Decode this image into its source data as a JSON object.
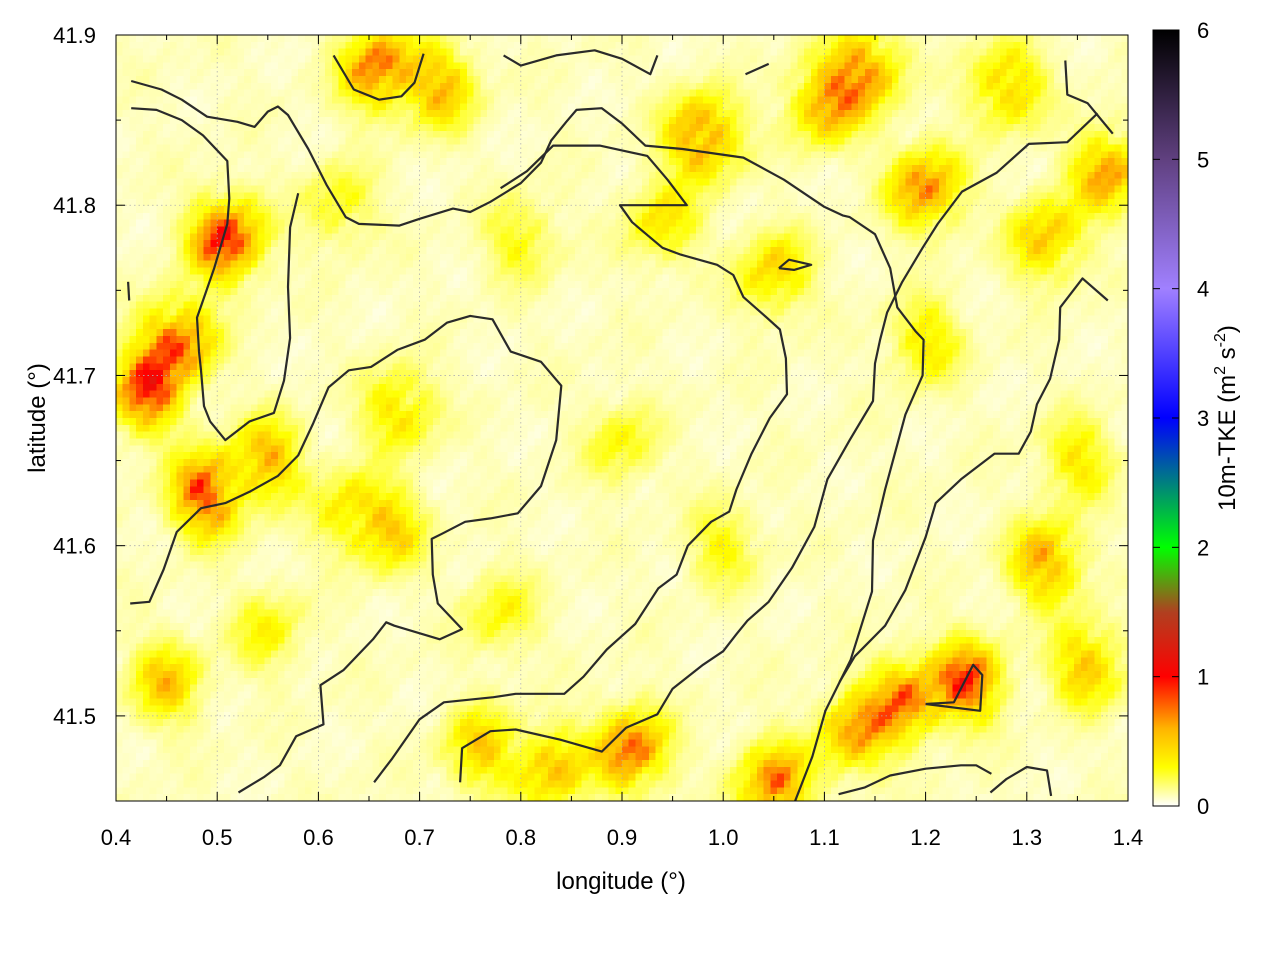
{
  "chart_data": {
    "type": "heatmap",
    "title": "",
    "xlabel": "longitude (°)",
    "ylabel": "latitude (°)",
    "xlim": [
      0.4,
      1.4
    ],
    "ylim": [
      41.45,
      41.9
    ],
    "x_ticks": [
      "0.4",
      "0.5",
      "0.6",
      "0.7",
      "0.8",
      "0.9",
      "1.0",
      "1.1",
      "1.2",
      "1.3",
      "1.4"
    ],
    "y_ticks": [
      "41.5",
      "41.6",
      "41.7",
      "41.8",
      "41.9"
    ],
    "grid": true,
    "colorbar": {
      "label_main": "10m-TKE (m",
      "label_sup1": "2",
      "label_mid": " s",
      "label_sup2": "-2",
      "label_end": ")",
      "range": [
        0,
        6
      ],
      "ticks": [
        "0",
        "1",
        "2",
        "3",
        "4",
        "5",
        "6"
      ],
      "colors": [
        {
          "v": 0.0,
          "c": "#ffffff"
        },
        {
          "v": 0.3,
          "c": "#ffff00"
        },
        {
          "v": 0.6,
          "c": "#ffb400"
        },
        {
          "v": 1.0,
          "c": "#ff0000"
        },
        {
          "v": 1.5,
          "c": "#b04020"
        },
        {
          "v": 2.0,
          "c": "#00ff00"
        },
        {
          "v": 3.0,
          "c": "#0000ff"
        },
        {
          "v": 4.0,
          "c": "#a080ff"
        },
        {
          "v": 5.0,
          "c": "#604080"
        },
        {
          "v": 6.0,
          "c": "#000000"
        }
      ]
    },
    "field_hotspots": [
      {
        "lon": 0.51,
        "lat": 41.78,
        "value": 1.1
      },
      {
        "lon": 0.46,
        "lat": 41.72,
        "value": 1.0
      },
      {
        "lon": 0.43,
        "lat": 41.69,
        "value": 0.9
      },
      {
        "lon": 0.49,
        "lat": 41.63,
        "value": 1.0
      },
      {
        "lon": 0.55,
        "lat": 41.65,
        "value": 0.6
      },
      {
        "lon": 0.66,
        "lat": 41.88,
        "value": 0.9
      },
      {
        "lon": 0.72,
        "lat": 41.87,
        "value": 0.6
      },
      {
        "lon": 0.98,
        "lat": 41.84,
        "value": 0.9
      },
      {
        "lon": 1.1,
        "lat": 41.86,
        "value": 0.7
      },
      {
        "lon": 1.14,
        "lat": 41.88,
        "value": 0.8
      },
      {
        "lon": 1.2,
        "lat": 41.81,
        "value": 0.8
      },
      {
        "lon": 1.28,
        "lat": 41.87,
        "value": 0.6
      },
      {
        "lon": 1.38,
        "lat": 41.82,
        "value": 0.7
      },
      {
        "lon": 1.32,
        "lat": 41.78,
        "value": 0.6
      },
      {
        "lon": 1.05,
        "lat": 41.76,
        "value": 0.5
      },
      {
        "lon": 0.94,
        "lat": 41.79,
        "value": 0.4
      },
      {
        "lon": 1.24,
        "lat": 41.52,
        "value": 0.9
      },
      {
        "lon": 1.18,
        "lat": 41.51,
        "value": 0.8
      },
      {
        "lon": 1.13,
        "lat": 41.49,
        "value": 0.7
      },
      {
        "lon": 1.32,
        "lat": 41.59,
        "value": 0.7
      },
      {
        "lon": 1.36,
        "lat": 41.53,
        "value": 0.6
      },
      {
        "lon": 0.91,
        "lat": 41.48,
        "value": 0.9
      },
      {
        "lon": 1.05,
        "lat": 41.46,
        "value": 0.8
      },
      {
        "lon": 0.83,
        "lat": 41.47,
        "value": 0.6
      },
      {
        "lon": 0.76,
        "lat": 41.48,
        "value": 0.5
      },
      {
        "lon": 0.45,
        "lat": 41.52,
        "value": 0.5
      },
      {
        "lon": 0.68,
        "lat": 41.68,
        "value": 0.5
      },
      {
        "lon": 0.63,
        "lat": 41.62,
        "value": 0.4
      },
      {
        "lon": 0.67,
        "lat": 41.61,
        "value": 0.5
      },
      {
        "lon": 1.2,
        "lat": 41.72,
        "value": 0.4
      },
      {
        "lon": 1.35,
        "lat": 41.65,
        "value": 0.4
      },
      {
        "lon": 0.62,
        "lat": 41.8,
        "value": 0.3
      },
      {
        "lon": 0.8,
        "lat": 41.78,
        "value": 0.3
      },
      {
        "lon": 0.9,
        "lat": 41.66,
        "value": 0.3
      },
      {
        "lon": 0.55,
        "lat": 41.55,
        "value": 0.3
      },
      {
        "lon": 1.0,
        "lat": 41.6,
        "value": 0.3
      },
      {
        "lon": 0.78,
        "lat": 41.56,
        "value": 0.3
      }
    ],
    "contours": [
      [
        [
          0.415,
          41.873
        ],
        [
          0.445,
          41.868
        ],
        [
          0.465,
          41.862
        ],
        [
          0.49,
          41.852
        ],
        [
          0.52,
          41.849
        ],
        [
          0.537,
          41.846
        ],
        [
          0.55,
          41.855
        ],
        [
          0.56,
          41.858
        ],
        [
          0.57,
          41.853
        ],
        [
          0.59,
          41.833
        ],
        [
          0.608,
          41.812
        ],
        [
          0.627,
          41.793
        ],
        [
          0.64,
          41.789
        ],
        [
          0.68,
          41.788
        ],
        [
          0.7,
          41.792
        ],
        [
          0.733,
          41.798
        ],
        [
          0.75,
          41.796
        ],
        [
          0.77,
          41.802
        ],
        [
          0.8,
          41.813
        ],
        [
          0.82,
          41.825
        ],
        [
          0.83,
          41.838
        ],
        [
          0.845,
          41.849
        ],
        [
          0.855,
          41.856
        ],
        [
          0.88,
          41.857
        ],
        [
          0.9,
          41.848
        ],
        [
          0.923,
          41.835
        ],
        [
          0.96,
          41.833
        ],
        [
          1.02,
          41.828
        ],
        [
          1.06,
          41.815
        ],
        [
          1.1,
          41.799
        ],
        [
          1.118,
          41.794
        ],
        [
          1.125,
          41.793
        ],
        [
          1.15,
          41.783
        ],
        [
          1.165,
          41.763
        ],
        [
          1.172,
          41.74
        ],
        [
          1.19,
          41.726
        ],
        [
          1.198,
          41.721
        ],
        [
          1.197,
          41.7
        ],
        [
          1.18,
          41.677
        ],
        [
          1.16,
          41.633
        ],
        [
          1.148,
          41.603
        ],
        [
          1.147,
          41.573
        ],
        [
          1.126,
          41.533
        ],
        [
          1.101,
          41.503
        ],
        [
          1.088,
          41.476
        ],
        [
          1.06,
          41.433
        ],
        [
          1.041,
          41.415
        ],
        [
          1.02,
          41.39
        ]
      ],
      [
        [
          0.415,
          41.857
        ],
        [
          0.44,
          41.856
        ],
        [
          0.465,
          41.85
        ],
        [
          0.486,
          41.841
        ],
        [
          0.51,
          41.826
        ],
        [
          0.512,
          41.804
        ],
        [
          0.51,
          41.789
        ],
        [
          0.497,
          41.763
        ],
        [
          0.486,
          41.744
        ],
        [
          0.48,
          41.734
        ],
        [
          0.482,
          41.714
        ],
        [
          0.484,
          41.703
        ],
        [
          0.487,
          41.682
        ],
        [
          0.493,
          41.673
        ],
        [
          0.508,
          41.662
        ],
        [
          0.532,
          41.673
        ],
        [
          0.556,
          41.678
        ],
        [
          0.566,
          41.697
        ],
        [
          0.572,
          41.722
        ],
        [
          0.57,
          41.752
        ],
        [
          0.572,
          41.787
        ],
        [
          0.58,
          41.807
        ]
      ],
      [
        [
          0.414,
          41.566
        ],
        [
          0.433,
          41.567
        ],
        [
          0.447,
          41.586
        ],
        [
          0.46,
          41.608
        ],
        [
          0.484,
          41.622
        ],
        [
          0.508,
          41.625
        ],
        [
          0.533,
          41.632
        ],
        [
          0.56,
          41.641
        ],
        [
          0.58,
          41.653
        ],
        [
          0.595,
          41.672
        ],
        [
          0.61,
          41.693
        ],
        [
          0.63,
          41.703
        ],
        [
          0.652,
          41.705
        ],
        [
          0.678,
          41.715
        ],
        [
          0.705,
          41.721
        ],
        [
          0.727,
          41.731
        ],
        [
          0.75,
          41.735
        ],
        [
          0.772,
          41.733
        ],
        [
          0.79,
          41.714
        ],
        [
          0.82,
          41.708
        ],
        [
          0.84,
          41.694
        ],
        [
          0.835,
          41.662
        ],
        [
          0.82,
          41.635
        ],
        [
          0.797,
          41.619
        ],
        [
          0.77,
          41.616
        ],
        [
          0.745,
          41.614
        ],
        [
          0.722,
          41.607
        ],
        [
          0.712,
          41.604
        ],
        [
          0.713,
          41.583
        ],
        [
          0.718,
          41.566
        ],
        [
          0.742,
          41.551
        ],
        [
          0.72,
          41.545
        ],
        [
          0.675,
          41.553
        ],
        [
          0.667,
          41.555
        ],
        [
          0.654,
          41.545
        ],
        [
          0.625,
          41.527
        ],
        [
          0.602,
          41.518
        ],
        [
          0.605,
          41.495
        ],
        [
          0.578,
          41.488
        ],
        [
          0.562,
          41.471
        ],
        [
          0.546,
          41.464
        ],
        [
          0.521,
          41.455
        ]
      ],
      [
        [
          0.655,
          41.461
        ],
        [
          0.673,
          41.475
        ],
        [
          0.7,
          41.498
        ],
        [
          0.724,
          41.508
        ],
        [
          0.773,
          41.511
        ],
        [
          0.795,
          41.513
        ],
        [
          0.843,
          41.513
        ],
        [
          0.862,
          41.523
        ],
        [
          0.885,
          41.539
        ],
        [
          0.913,
          41.554
        ],
        [
          0.936,
          41.575
        ],
        [
          0.954,
          41.583
        ],
        [
          0.965,
          41.6
        ],
        [
          0.988,
          41.614
        ],
        [
          1.006,
          41.62
        ],
        [
          1.013,
          41.633
        ],
        [
          1.028,
          41.654
        ],
        [
          1.046,
          41.675
        ],
        [
          1.063,
          41.689
        ],
        [
          1.062,
          41.71
        ],
        [
          1.056,
          41.727
        ],
        [
          1.043,
          41.734
        ],
        [
          1.02,
          41.746
        ],
        [
          1.01,
          41.759
        ],
        [
          0.994,
          41.765
        ],
        [
          0.958,
          41.771
        ],
        [
          0.94,
          41.775
        ],
        [
          0.91,
          41.79
        ],
        [
          0.898,
          41.8
        ],
        [
          0.92,
          41.8
        ],
        [
          0.964,
          41.8
        ],
        [
          0.945,
          41.815
        ],
        [
          0.925,
          41.829
        ],
        [
          0.878,
          41.835
        ],
        [
          0.832,
          41.835
        ],
        [
          0.806,
          41.82
        ],
        [
          0.78,
          41.81
        ]
      ],
      [
        [
          0.74,
          41.461
        ],
        [
          0.742,
          41.481
        ],
        [
          0.77,
          41.491
        ],
        [
          0.795,
          41.492
        ],
        [
          0.839,
          41.486
        ],
        [
          0.88,
          41.479
        ],
        [
          0.904,
          41.493
        ],
        [
          0.935,
          41.501
        ],
        [
          0.95,
          41.516
        ],
        [
          0.98,
          41.53
        ],
        [
          1.0,
          41.538
        ],
        [
          1.013,
          41.548
        ],
        [
          1.024,
          41.556
        ],
        [
          1.045,
          41.567
        ],
        [
          1.068,
          41.587
        ],
        [
          1.09,
          41.611
        ],
        [
          1.103,
          41.639
        ],
        [
          1.125,
          41.662
        ],
        [
          1.148,
          41.685
        ],
        [
          1.15,
          41.707
        ],
        [
          1.155,
          41.721
        ],
        [
          1.162,
          41.737
        ],
        [
          1.177,
          41.755
        ],
        [
          1.197,
          41.775
        ],
        [
          1.212,
          41.789
        ],
        [
          1.236,
          41.808
        ],
        [
          1.27,
          41.819
        ],
        [
          1.302,
          41.836
        ],
        [
          1.34,
          41.837
        ],
        [
          1.37,
          41.854
        ]
      ],
      [
        [
          1.114,
          41.454
        ],
        [
          1.14,
          41.458
        ],
        [
          1.165,
          41.465
        ],
        [
          1.2,
          41.469
        ],
        [
          1.235,
          41.471
        ],
        [
          1.25,
          41.471
        ],
        [
          1.265,
          41.466
        ]
      ],
      [
        [
          1.2,
          41.507
        ],
        [
          1.254,
          41.503
        ],
        [
          1.256,
          41.524
        ],
        [
          1.247,
          41.53
        ],
        [
          1.228,
          41.508
        ],
        [
          1.2,
          41.507
        ]
      ],
      [
        [
          1.264,
          41.455
        ],
        [
          1.28,
          41.463
        ],
        [
          1.3,
          41.47
        ],
        [
          1.32,
          41.468
        ],
        [
          1.324,
          41.453
        ]
      ],
      [
        [
          1.115,
          41.52
        ],
        [
          1.13,
          41.535
        ],
        [
          1.16,
          41.553
        ],
        [
          1.18,
          41.574
        ],
        [
          1.2,
          41.605
        ],
        [
          1.21,
          41.625
        ],
        [
          1.235,
          41.639
        ],
        [
          1.268,
          41.654
        ],
        [
          1.292,
          41.654
        ],
        [
          1.304,
          41.667
        ],
        [
          1.31,
          41.683
        ],
        [
          1.323,
          41.698
        ],
        [
          1.332,
          41.721
        ],
        [
          1.333,
          41.74
        ],
        [
          1.355,
          41.757
        ],
        [
          1.38,
          41.744
        ]
      ],
      [
        [
          1.338,
          41.885
        ],
        [
          1.34,
          41.865
        ],
        [
          1.36,
          41.86
        ],
        [
          1.385,
          41.842
        ]
      ],
      [
        [
          1.055,
          41.763
        ],
        [
          1.07,
          41.762
        ],
        [
          1.087,
          41.765
        ],
        [
          1.065,
          41.768
        ],
        [
          1.055,
          41.763
        ]
      ],
      [
        [
          0.615,
          41.888
        ],
        [
          0.635,
          41.868
        ],
        [
          0.66,
          41.862
        ],
        [
          0.682,
          41.864
        ],
        [
          0.695,
          41.872
        ],
        [
          0.704,
          41.889
        ]
      ],
      [
        [
          0.783,
          41.888
        ],
        [
          0.8,
          41.882
        ],
        [
          0.835,
          41.888
        ],
        [
          0.873,
          41.891
        ],
        [
          0.9,
          41.886
        ],
        [
          0.928,
          41.877
        ],
        [
          0.935,
          41.888
        ]
      ],
      [
        [
          1.022,
          41.877
        ],
        [
          1.045,
          41.883
        ]
      ],
      [
        [
          0.412,
          41.755
        ],
        [
          0.413,
          41.744
        ]
      ]
    ]
  }
}
